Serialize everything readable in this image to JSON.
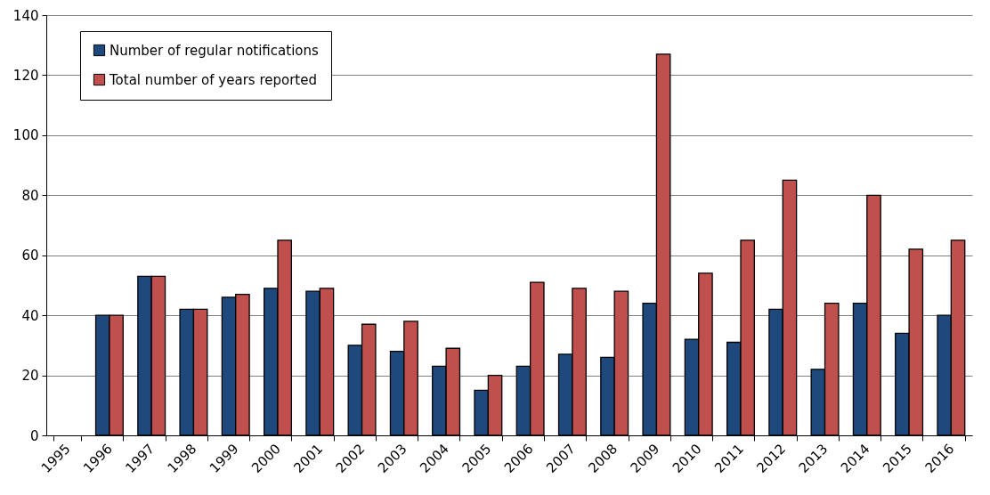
{
  "chart_data": {
    "type": "bar",
    "categories": [
      "1995",
      "1996",
      "1997",
      "1998",
      "1999",
      "2000",
      "2001",
      "2002",
      "2003",
      "2004",
      "2005",
      "2006",
      "2007",
      "2008",
      "2009",
      "2010",
      "2011",
      "2012",
      "2013",
      "2014",
      "2015",
      "2016"
    ],
    "series": [
      {
        "name": "Number of regular notifications",
        "color": "#1f497d",
        "values": [
          null,
          40,
          53,
          42,
          46,
          49,
          48,
          30,
          28,
          23,
          15,
          23,
          27,
          26,
          44,
          32,
          31,
          42,
          22,
          44,
          34,
          40
        ]
      },
      {
        "name": "Total number of years reported",
        "color": "#c0504d",
        "values": [
          null,
          40,
          53,
          42,
          47,
          65,
          49,
          37,
          38,
          29,
          20,
          51,
          49,
          48,
          127,
          54,
          65,
          85,
          44,
          80,
          62,
          65
        ]
      }
    ],
    "ylim": [
      0,
      140
    ],
    "yticks": [
      0,
      20,
      40,
      60,
      80,
      100,
      120,
      140
    ],
    "grid": "y",
    "legend": "top left"
  }
}
